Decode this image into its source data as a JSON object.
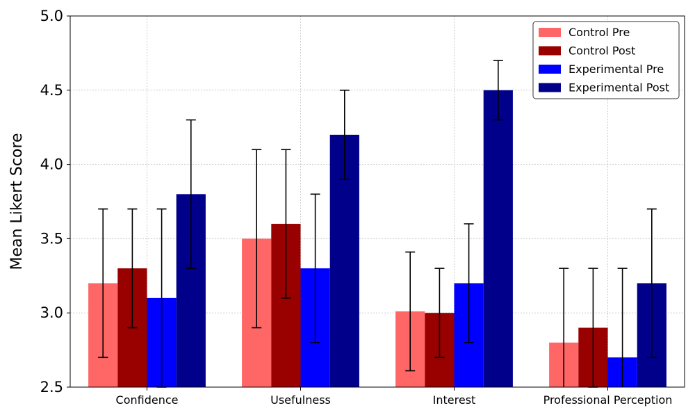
{
  "chart_data": {
    "type": "bar",
    "ylabel": "Mean Likert Score",
    "ylim": [
      2.5,
      5.0
    ],
    "yticks": [
      "2.5",
      "3.0",
      "3.5",
      "4.0",
      "4.5",
      "5.0"
    ],
    "categories": [
      "Confidence",
      "Usefulness",
      "Interest",
      "Professional Perception"
    ],
    "grid": true,
    "legend_position": "top-right",
    "series": [
      {
        "name": "Control Pre",
        "color": "#ff6666",
        "values": [
          3.2,
          3.5,
          3.01,
          2.8
        ],
        "errors": [
          0.5,
          0.6,
          0.4,
          0.5
        ]
      },
      {
        "name": "Control Post",
        "color": "#990000",
        "values": [
          3.3,
          3.6,
          3.0,
          2.9
        ],
        "errors": [
          0.4,
          0.5,
          0.3,
          0.4
        ]
      },
      {
        "name": "Experimental Pre",
        "color": "#0000ff",
        "values": [
          3.1,
          3.3,
          3.2,
          2.7
        ],
        "errors": [
          0.6,
          0.5,
          0.4,
          0.6
        ]
      },
      {
        "name": "Experimental Post",
        "color": "#00008b",
        "values": [
          3.8,
          4.2,
          4.5,
          3.2
        ],
        "errors": [
          0.5,
          0.3,
          0.2,
          0.5
        ]
      }
    ]
  }
}
